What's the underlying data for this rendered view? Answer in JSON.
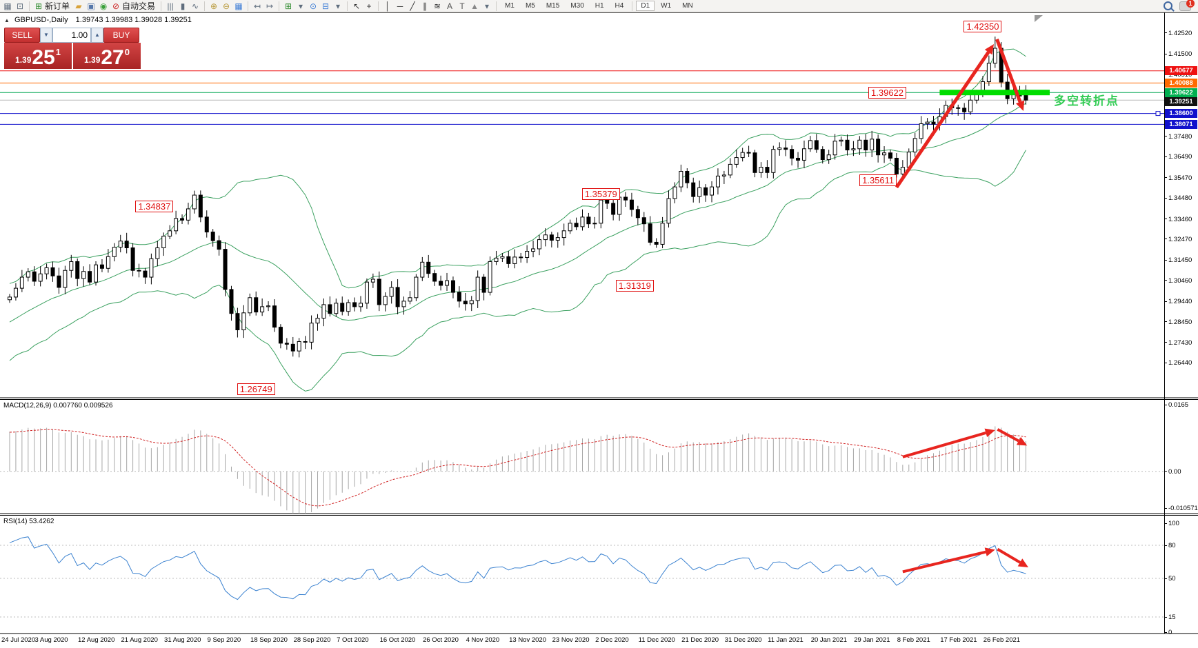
{
  "toolbar": {
    "icons": [
      {
        "name": "chart-list-icon",
        "glyph": "▦",
        "color": "#5f6d7d"
      },
      {
        "name": "chart-profile-icon",
        "glyph": "⊡",
        "color": "#5f6d7d"
      },
      {
        "sep": true
      },
      {
        "name": "new-order-icon",
        "glyph": "⊞",
        "color": "#2e8b2e"
      },
      {
        "name": "new-order-label",
        "text": "新订单"
      },
      {
        "name": "eraser-icon",
        "glyph": "▰",
        "color": "#d8a23a"
      },
      {
        "name": "expert-advisor-icon",
        "glyph": "▣",
        "color": "#5577aa"
      },
      {
        "name": "signals-icon",
        "glyph": "◉",
        "color": "#3aa03a"
      },
      {
        "name": "autotrading-icon",
        "glyph": "⊘",
        "color": "#cc2222"
      },
      {
        "name": "autotrading-label",
        "text": "自动交易"
      },
      {
        "sep": true
      },
      {
        "name": "bar-chart-type-icon",
        "glyph": "|||",
        "color": "#5f6d7d"
      },
      {
        "name": "candlestick-type-icon",
        "glyph": "▮",
        "color": "#5f6d7d"
      },
      {
        "name": "line-chart-type-icon",
        "glyph": "∿",
        "color": "#5f6d7d"
      },
      {
        "sep": true
      },
      {
        "name": "zoom-in-icon",
        "glyph": "⊕",
        "color": "#b99a3c"
      },
      {
        "name": "zoom-out-icon",
        "glyph": "⊖",
        "color": "#b99a3c"
      },
      {
        "name": "tile-windows-icon",
        "glyph": "▦",
        "color": "#3a7bd5"
      },
      {
        "sep": true
      },
      {
        "name": "auto-scroll-icon",
        "glyph": "↤",
        "color": "#5f6d7d"
      },
      {
        "name": "chart-shift-icon",
        "glyph": "↦",
        "color": "#5f6d7d"
      },
      {
        "sep": true
      },
      {
        "name": "add-indicator-icon",
        "glyph": "⊞",
        "color": "#2e8b2e"
      },
      {
        "name": "dropdown-caret-icon",
        "glyph": "▾",
        "color": "#5f6d7d"
      },
      {
        "name": "period-icon",
        "glyph": "⊙",
        "color": "#3a7bd5"
      },
      {
        "name": "template-icon",
        "glyph": "⊟",
        "color": "#3a7bd5"
      },
      {
        "name": "dropdown-caret-icon",
        "glyph": "▾",
        "color": "#5f6d7d"
      },
      {
        "sep": true
      },
      {
        "name": "cursor-icon",
        "glyph": "↖",
        "color": "#333333"
      },
      {
        "name": "crosshair-icon",
        "glyph": "+",
        "color": "#333333"
      },
      {
        "sep": true
      },
      {
        "name": "vertical-line-icon",
        "glyph": "│",
        "color": "#333333"
      },
      {
        "name": "horizontal-line-icon",
        "glyph": "─",
        "color": "#333333"
      },
      {
        "name": "trendline-icon",
        "glyph": "╱",
        "color": "#333333"
      },
      {
        "name": "equidistant-channel-icon",
        "glyph": "∥",
        "color": "#333333"
      },
      {
        "name": "fibonacci-icon",
        "glyph": "≋",
        "color": "#333333"
      },
      {
        "name": "text-icon",
        "glyph": "A",
        "color": "#555555"
      },
      {
        "name": "text-label-icon",
        "glyph": "T",
        "color": "#555555"
      },
      {
        "name": "arrows-tool-icon",
        "glyph": "▲",
        "color": "#888888"
      },
      {
        "name": "dropdown-caret-icon",
        "glyph": "▾",
        "color": "#5f6d7d"
      },
      {
        "sep": true
      }
    ],
    "timeframes": [
      "M1",
      "M5",
      "M15",
      "M30",
      "H1",
      "H4",
      "D1",
      "W1",
      "MN"
    ],
    "active_timeframe": "D1",
    "notification_count": "1"
  },
  "chart": {
    "title": {
      "collapse_glyph": "▲",
      "symbol": "GBPUSD-,Daily",
      "ohlc": "1.39743 1.39983 1.39028 1.39251"
    },
    "trade_panel": {
      "sell_label": "SELL",
      "buy_label": "BUY",
      "volume": "1.00",
      "spinner_down": "▼",
      "spinner_up": "▲",
      "sell_small": "1.39",
      "sell_big": "25",
      "sell_sup": "1",
      "buy_small": "1.39",
      "buy_big": "27",
      "buy_sup": "0"
    },
    "y_ticks": [
      "1.42520",
      "1.41500",
      "1.40510",
      "1.39490",
      "1.38500",
      "1.37480",
      "1.36490",
      "1.35470",
      "1.34480",
      "1.33460",
      "1.32470",
      "1.31450",
      "1.30460",
      "1.29440",
      "1.28450",
      "1.27430",
      "1.26440"
    ],
    "levels": [
      {
        "label": "1.40677",
        "price": 1.40677,
        "line": "#ee1111",
        "badge": "#ee1111"
      },
      {
        "label": "1.40088",
        "price": 1.40088,
        "line": "#ff6a00",
        "badge": "#ff6a00"
      },
      {
        "label": "1.39622",
        "price": 1.39622,
        "line": "#00a651",
        "badge": "#00b050"
      },
      {
        "label": "1.39251",
        "price": 1.39251,
        "line": "#b9b9b9",
        "badge": "#111111",
        "current": true
      },
      {
        "label": "1.38600",
        "price": 1.386,
        "line": "#1111cc",
        "badge": "#1111cc",
        "handle": true
      },
      {
        "label": "1.38071",
        "price": 1.38071,
        "line": "#1111cc",
        "badge": "#1111cc"
      }
    ],
    "annotation_boxes": [
      {
        "text": "1.34837",
        "bar": 23.5,
        "price": 1.3408
      },
      {
        "text": "1.26749",
        "bar": 40,
        "price": 1.2515
      },
      {
        "text": "1.35379",
        "bar": 96,
        "price": 1.3466
      },
      {
        "text": "1.31319",
        "bar": 101.5,
        "price": 1.3019
      },
      {
        "text": "1.35611",
        "bar": 141,
        "price": 1.3535
      },
      {
        "text": "1.39622",
        "bar": 142.5,
        "price": 1.39622
      },
      {
        "text": "1.42350",
        "bar": 158,
        "price": 1.4283
      }
    ],
    "green_bar": {
      "price": 1.39622,
      "bar_from": 151,
      "x_to": 1522,
      "thickness": 8,
      "color": "#00dd00"
    },
    "green_text": {
      "text": "多空转折点",
      "x": 1528,
      "price": 1.3935,
      "color": "#33cc55"
    },
    "arrows": [
      {
        "x1b": 144,
        "p1": 1.35,
        "x2b": 159.8,
        "p2": 1.4198
      },
      {
        "x1b": 160.3,
        "p1": 1.4222,
        "x2b": 164.6,
        "p2": 1.3872
      }
    ],
    "arrow_color": "#e8251f"
  },
  "macd": {
    "label": "MACD(12,26,9) 0.007760 0.009526",
    "ticks": [
      {
        "label": "0.0165",
        "v": 0.0165
      },
      {
        "label": "0.00",
        "v": 0
      },
      {
        "label": "-0.010571",
        "v": -0.010571
      }
    ],
    "arrows": [
      {
        "x1b": 145,
        "v1": 0.0036,
        "x2b": 160,
        "v2": 0.0102
      },
      {
        "x1b": 160.4,
        "v1": 0.0104,
        "x2b": 165.2,
        "v2": 0.0064
      }
    ]
  },
  "rsi": {
    "label": "RSI(14) 53.4262",
    "ticks": [
      {
        "label": "100",
        "v": 100
      },
      {
        "label": "80",
        "v": 80
      },
      {
        "label": "50",
        "v": 50
      },
      {
        "label": "15",
        "v": 15
      },
      {
        "label": "0",
        "v": 0
      }
    ],
    "dashed_levels": [
      80,
      50,
      15
    ],
    "line_color": "#3b82d0",
    "arrows": [
      {
        "x1b": 145,
        "v1": 56,
        "x2b": 160,
        "v2": 76
      },
      {
        "x1b": 160.4,
        "v1": 76.5,
        "x2b": 165.4,
        "v2": 60
      }
    ]
  },
  "chart_data": {
    "type": "candlestick",
    "symbol": "GBPUSD",
    "timeframe": "Daily",
    "current_bar_ohlc": {
      "open": 1.39743,
      "high": 1.39983,
      "low": 1.39028,
      "close": 1.39251
    },
    "ylim": [
      1.2474,
      1.4346
    ],
    "x_labels": [
      "24 Jul 2020",
      "3 Aug 2020",
      "12 Aug 2020",
      "21 Aug 2020",
      "31 Aug 2020",
      "9 Sep 2020",
      "18 Sep 2020",
      "28 Sep 2020",
      "7 Oct 2020",
      "16 Oct 2020",
      "26 Oct 2020",
      "4 Nov 2020",
      "13 Nov 2020",
      "23 Nov 2020",
      "2 Dec 2020",
      "11 Dec 2020",
      "21 Dec 2020",
      "31 Dec 2020",
      "11 Jan 2021",
      "20 Jan 2021",
      "29 Jan 2021",
      "8 Feb 2021",
      "17 Feb 2021",
      "26 Feb 2021"
    ],
    "label_every_bars": 7,
    "warmup_closes": [
      1.245,
      1.248,
      1.2465,
      1.251,
      1.2545,
      1.253,
      1.2575,
      1.261,
      1.2598,
      1.264,
      1.2672,
      1.2655,
      1.27,
      1.2732,
      1.2718,
      1.276,
      1.2788,
      1.2775,
      1.2815,
      1.2842,
      1.283,
      1.2868,
      1.2895,
      1.2882,
      1.2915,
      1.2938,
      1.2925,
      1.2948,
      1.296,
      1.2952
    ],
    "closes": [
      1.2965,
      1.3008,
      1.3062,
      1.3088,
      1.3042,
      1.3078,
      1.3108,
      1.3068,
      1.3012,
      1.3095,
      1.3138,
      1.3055,
      1.309,
      1.3038,
      1.3122,
      1.3105,
      1.3162,
      1.3208,
      1.3238,
      1.3205,
      1.3095,
      1.3092,
      1.3062,
      1.3152,
      1.3205,
      1.3262,
      1.3288,
      1.3348,
      1.334,
      1.3395,
      1.3462,
      1.3355,
      1.3282,
      1.324,
      1.3198,
      1.3002,
      1.2885,
      1.2805,
      1.2888,
      1.2962,
      1.2892,
      1.2918,
      1.2922,
      1.2818,
      1.274,
      1.2735,
      1.2702,
      1.2748,
      1.2745,
      1.2838,
      1.2862,
      1.2928,
      1.2885,
      1.2935,
      1.2895,
      1.2938,
      1.2918,
      1.2935,
      1.3038,
      1.3052,
      1.2928,
      1.2968,
      1.3012,
      1.2918,
      1.2945,
      1.2962,
      1.3062,
      1.3135,
      1.308,
      1.3042,
      1.3022,
      1.3045,
      1.2988,
      1.2945,
      1.2932,
      1.2948,
      1.3062,
      1.2988,
      1.3138,
      1.3155,
      1.3162,
      1.3128,
      1.316,
      1.3158,
      1.3188,
      1.32,
      1.3245,
      1.3268,
      1.3242,
      1.3255,
      1.3288,
      1.3325,
      1.3308,
      1.3355,
      1.3322,
      1.3325,
      1.3438,
      1.3422,
      1.3368,
      1.3452,
      1.3438,
      1.3392,
      1.3352,
      1.3322,
      1.3232,
      1.3222,
      1.3325,
      1.3445,
      1.3502,
      1.3578,
      1.3522,
      1.3455,
      1.3498,
      1.3462,
      1.3502,
      1.3555,
      1.356,
      1.3612,
      1.3645,
      1.367,
      1.3668,
      1.3572,
      1.3598,
      1.3572,
      1.3685,
      1.3692,
      1.3685,
      1.3642,
      1.3632,
      1.3688,
      1.3728,
      1.3685,
      1.3635,
      1.3658,
      1.3725,
      1.373,
      1.3682,
      1.3688,
      1.373,
      1.3682,
      1.3735,
      1.3658,
      1.3668,
      1.3642,
      1.3565,
      1.3598,
      1.3672,
      1.3738,
      1.381,
      1.3818,
      1.3808,
      1.3845,
      1.39,
      1.3888,
      1.3886,
      1.3868,
      1.3925,
      1.3958,
      1.4015,
      1.4105,
      1.4178,
      1.4013,
      1.3932,
      1.3962,
      1.3945,
      1.39251
    ],
    "overrides": {
      "30": {
        "high": 1.34837
      },
      "46": {
        "low": 1.26749
      },
      "160": {
        "high": 1.4235
      },
      "165": {
        "open": 1.39743,
        "high": 1.39983,
        "low": 1.39028,
        "close": 1.39251
      }
    },
    "indicators": [
      {
        "name": "Bollinger Bands",
        "period": 20,
        "deviation": 2,
        "color": "#3aa05f"
      },
      {
        "name": "MACD",
        "params": "12,26,9",
        "values": "0.007760 0.009526"
      },
      {
        "name": "RSI",
        "period": 14,
        "value": "53.4262"
      }
    ]
  }
}
